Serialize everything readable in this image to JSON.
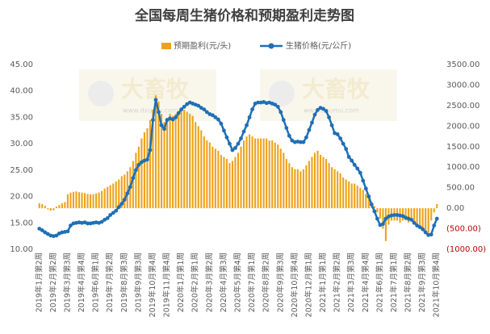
{
  "chart_data": {
    "type": "combo",
    "title": "全国每周生猪价格和预期盈利走势图",
    "watermark": [
      "大畜牧",
      "www.dxumu.com"
    ],
    "categories": [
      "2019年1月第2周",
      null,
      null,
      null,
      null,
      "2019年2月第2周",
      null,
      null,
      null,
      null,
      "2019年3月第3周",
      null,
      null,
      null,
      null,
      "2019年4月第4周",
      null,
      null,
      null,
      null,
      "2019年6月第1周",
      null,
      null,
      null,
      null,
      "2019年7月第2周",
      null,
      null,
      null,
      null,
      "2019年8月第3周",
      null,
      null,
      null,
      null,
      "2019年9月第3周",
      null,
      null,
      null,
      null,
      "2019年10月第4周",
      null,
      null,
      null,
      null,
      "2019年11月第4周",
      null,
      null,
      null,
      null,
      "2020年1月第1周",
      null,
      null,
      null,
      null,
      "2020年2月第1周",
      null,
      null,
      null,
      null,
      "2020年3月第2周",
      null,
      null,
      null,
      null,
      "2020年4月第3周",
      null,
      null,
      null,
      null,
      "2020年5月第4周",
      null,
      null,
      null,
      null,
      "2020年7月第1周",
      null,
      null,
      null,
      null,
      "2020年8月第2周",
      null,
      null,
      null,
      null,
      "2020年9月第3周",
      null,
      null,
      null,
      null,
      "2020年10月第4周",
      null,
      null,
      null,
      null,
      "2020年12月第1周",
      null,
      null,
      null,
      null,
      "2021年1月第1周",
      null,
      null,
      null,
      null,
      "2021年2月第2周",
      null,
      null,
      null,
      null,
      "2021年3月第3周",
      null,
      null,
      null,
      null,
      "2021年4月第4周",
      null,
      null,
      null,
      null,
      "2021年6月第1周",
      null,
      null,
      null,
      null,
      "2021年7月第1周",
      null,
      null,
      null,
      null,
      "2021年8月第2周",
      null,
      null,
      null,
      null,
      "2021年9月第3周",
      null,
      null,
      null,
      null,
      "2021年10月第4周"
    ],
    "series": [
      {
        "name": "预期盈利(元/头)",
        "type": "bar",
        "axis": "y2",
        "color": "#eea21b",
        "values": [
          120,
          100,
          60,
          -30,
          -60,
          -50,
          40,
          80,
          120,
          150,
          340,
          380,
          400,
          410,
          390,
          380,
          370,
          350,
          340,
          340,
          360,
          380,
          420,
          480,
          520,
          560,
          600,
          650,
          700,
          780,
          820,
          900,
          1000,
          1150,
          1350,
          1500,
          1700,
          1850,
          1950,
          2150,
          2400,
          2750,
          2600,
          2300,
          2100,
          2200,
          2300,
          2250,
          2300,
          2350,
          2400,
          2400,
          2350,
          2300,
          2250,
          2100,
          2000,
          1900,
          1750,
          1650,
          1600,
          1500,
          1450,
          1400,
          1300,
          1250,
          1200,
          1100,
          1150,
          1250,
          1350,
          1500,
          1650,
          1750,
          1800,
          1750,
          1700,
          1700,
          1700,
          1700,
          1700,
          1650,
          1650,
          1600,
          1550,
          1450,
          1350,
          1200,
          1100,
          1000,
          950,
          950,
          900,
          950,
          1050,
          1150,
          1250,
          1350,
          1400,
          1300,
          1250,
          1200,
          1100,
          1000,
          950,
          900,
          850,
          750,
          700,
          650,
          600,
          600,
          550,
          500,
          450,
          350,
          250,
          150,
          50,
          -100,
          -250,
          -500,
          -800,
          -400,
          -300,
          -300,
          -300,
          -350,
          -300,
          -300,
          -350,
          -300,
          -350,
          -400,
          -450,
          -500,
          -550,
          -600,
          -300,
          -100,
          100
        ]
      },
      {
        "name": "生猪价格(元/公斤)",
        "type": "line",
        "axis": "y",
        "color": "#1f6fb5",
        "values": [
          13.9,
          13.6,
          13.2,
          12.9,
          12.6,
          12.5,
          12.6,
          13.0,
          13.2,
          13.3,
          13.4,
          14.5,
          14.9,
          15.0,
          15.1,
          15.0,
          15.1,
          14.9,
          14.9,
          15.0,
          15.1,
          15.0,
          15.2,
          15.6,
          15.9,
          16.5,
          16.9,
          17.3,
          18.0,
          18.6,
          19.4,
          20.6,
          21.8,
          23.5,
          25.0,
          26.0,
          26.5,
          26.8,
          27.0,
          28.8,
          34.5,
          38.3,
          36.0,
          33.5,
          32.8,
          34.5,
          34.8,
          34.6,
          35.0,
          35.8,
          36.5,
          37.0,
          37.5,
          37.8,
          37.6,
          37.4,
          37.2,
          36.8,
          36.5,
          36.0,
          35.6,
          35.4,
          35.0,
          34.6,
          33.8,
          32.5,
          31.2,
          30.0,
          28.8,
          29.2,
          30.0,
          31.0,
          32.3,
          33.5,
          35.0,
          36.5,
          37.6,
          37.8,
          37.8,
          37.9,
          37.7,
          37.8,
          37.6,
          37.4,
          37.0,
          36.0,
          34.5,
          33.0,
          31.5,
          30.6,
          30.3,
          30.4,
          30.3,
          30.3,
          31.2,
          32.6,
          34.0,
          35.5,
          36.4,
          36.8,
          36.6,
          36.2,
          35.0,
          33.5,
          32.0,
          31.8,
          31.0,
          30.0,
          29.0,
          27.5,
          26.8,
          26.0,
          25.3,
          24.5,
          23.0,
          21.5,
          20.0,
          18.5,
          17.2,
          15.8,
          14.6,
          14.8,
          15.8,
          16.2,
          16.4,
          16.5,
          16.5,
          16.4,
          16.3,
          16.0,
          15.8,
          15.6,
          15.0,
          14.5,
          14.2,
          13.8,
          13.2,
          12.7,
          12.8,
          14.5,
          15.8
        ]
      }
    ],
    "ylim": [
      10,
      45
    ],
    "yticks": [
      {
        "value": 10,
        "label": "10.00"
      },
      {
        "value": 15,
        "label": "15.00"
      },
      {
        "value": 20,
        "label": "20.00"
      },
      {
        "value": 25,
        "label": "25.00"
      },
      {
        "value": 30,
        "label": "30.00"
      },
      {
        "value": 35,
        "label": "35.00"
      },
      {
        "value": 40,
        "label": "40.00"
      },
      {
        "value": 45,
        "label": "45.00"
      }
    ],
    "y2lim": [
      -1000,
      3500
    ],
    "y2ticks": [
      {
        "value": -1000,
        "label": "(1000.00)"
      },
      {
        "value": -500,
        "label": "(500.00)"
      },
      {
        "value": 0,
        "label": "0.00"
      },
      {
        "value": 500,
        "label": "500.00"
      },
      {
        "value": 1000,
        "label": "1000.00"
      },
      {
        "value": 1500,
        "label": "1500.00"
      },
      {
        "value": 2000,
        "label": "2000.00"
      },
      {
        "value": 2500,
        "label": "2500.00"
      },
      {
        "value": 3000,
        "label": "3000.00"
      },
      {
        "value": 3500,
        "label": "3500.00"
      }
    ],
    "negative_tick_color": "#c00000",
    "legend": "top"
  }
}
